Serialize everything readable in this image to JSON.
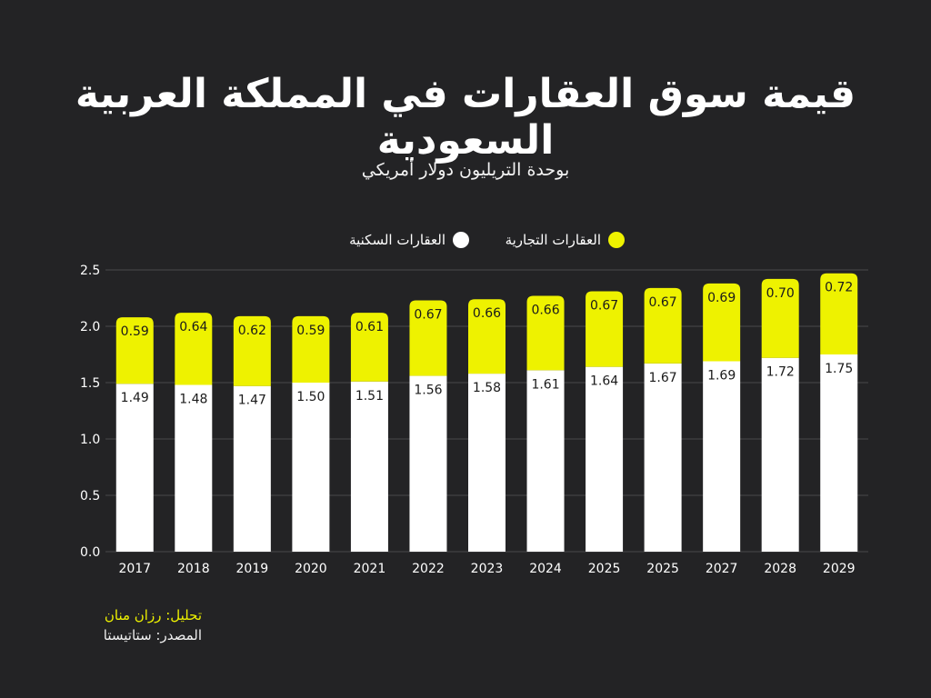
{
  "chart_data": {
    "type": "bar",
    "stacked": true,
    "title": "قيمة سوق العقارات في المملكة العربية السعودية",
    "subtitle": "بوحدة التريليون دولار أمريكي",
    "categories": [
      "2017",
      "2018",
      "2019",
      "2020",
      "2021",
      "2022",
      "2023",
      "2024",
      "2025",
      "2025",
      "2027",
      "2028",
      "2029"
    ],
    "series": [
      {
        "name": "العقارات السكنية",
        "color": "#ffffff",
        "values": [
          1.49,
          1.48,
          1.47,
          1.5,
          1.51,
          1.56,
          1.58,
          1.61,
          1.64,
          1.67,
          1.69,
          1.72,
          1.75
        ],
        "labels": [
          "1.49",
          "1.48",
          "1.47",
          "1.50",
          "1.51",
          "1.56",
          "1.58",
          "1.61",
          "1.64",
          "1.67",
          "1.69",
          "1.72",
          "1.75"
        ]
      },
      {
        "name": "العقارات التجارية",
        "color": "#eef200",
        "values": [
          0.59,
          0.64,
          0.62,
          0.59,
          0.61,
          0.67,
          0.66,
          0.66,
          0.67,
          0.67,
          0.69,
          0.7,
          0.72
        ],
        "labels": [
          "0.59",
          "0.64",
          "0.62",
          "0.59",
          "0.61",
          "0.67",
          "0.66",
          "0.66",
          "0.67",
          "0.67",
          "0.69",
          "0.70",
          "0.72"
        ]
      }
    ],
    "ylim": [
      0,
      2.5
    ],
    "yticks": [
      "0.0",
      "0.5",
      "1.0",
      "1.5",
      "2.0",
      "2.5"
    ],
    "grid": true,
    "legend_position": "top"
  },
  "credits": {
    "analysis": "تحليل: رزان منان",
    "source": "المصدر: ستاتيستا"
  },
  "colors": {
    "background": "#232325",
    "residential": "#ffffff",
    "commercial": "#eef200",
    "grid": "#4a4a4c"
  }
}
